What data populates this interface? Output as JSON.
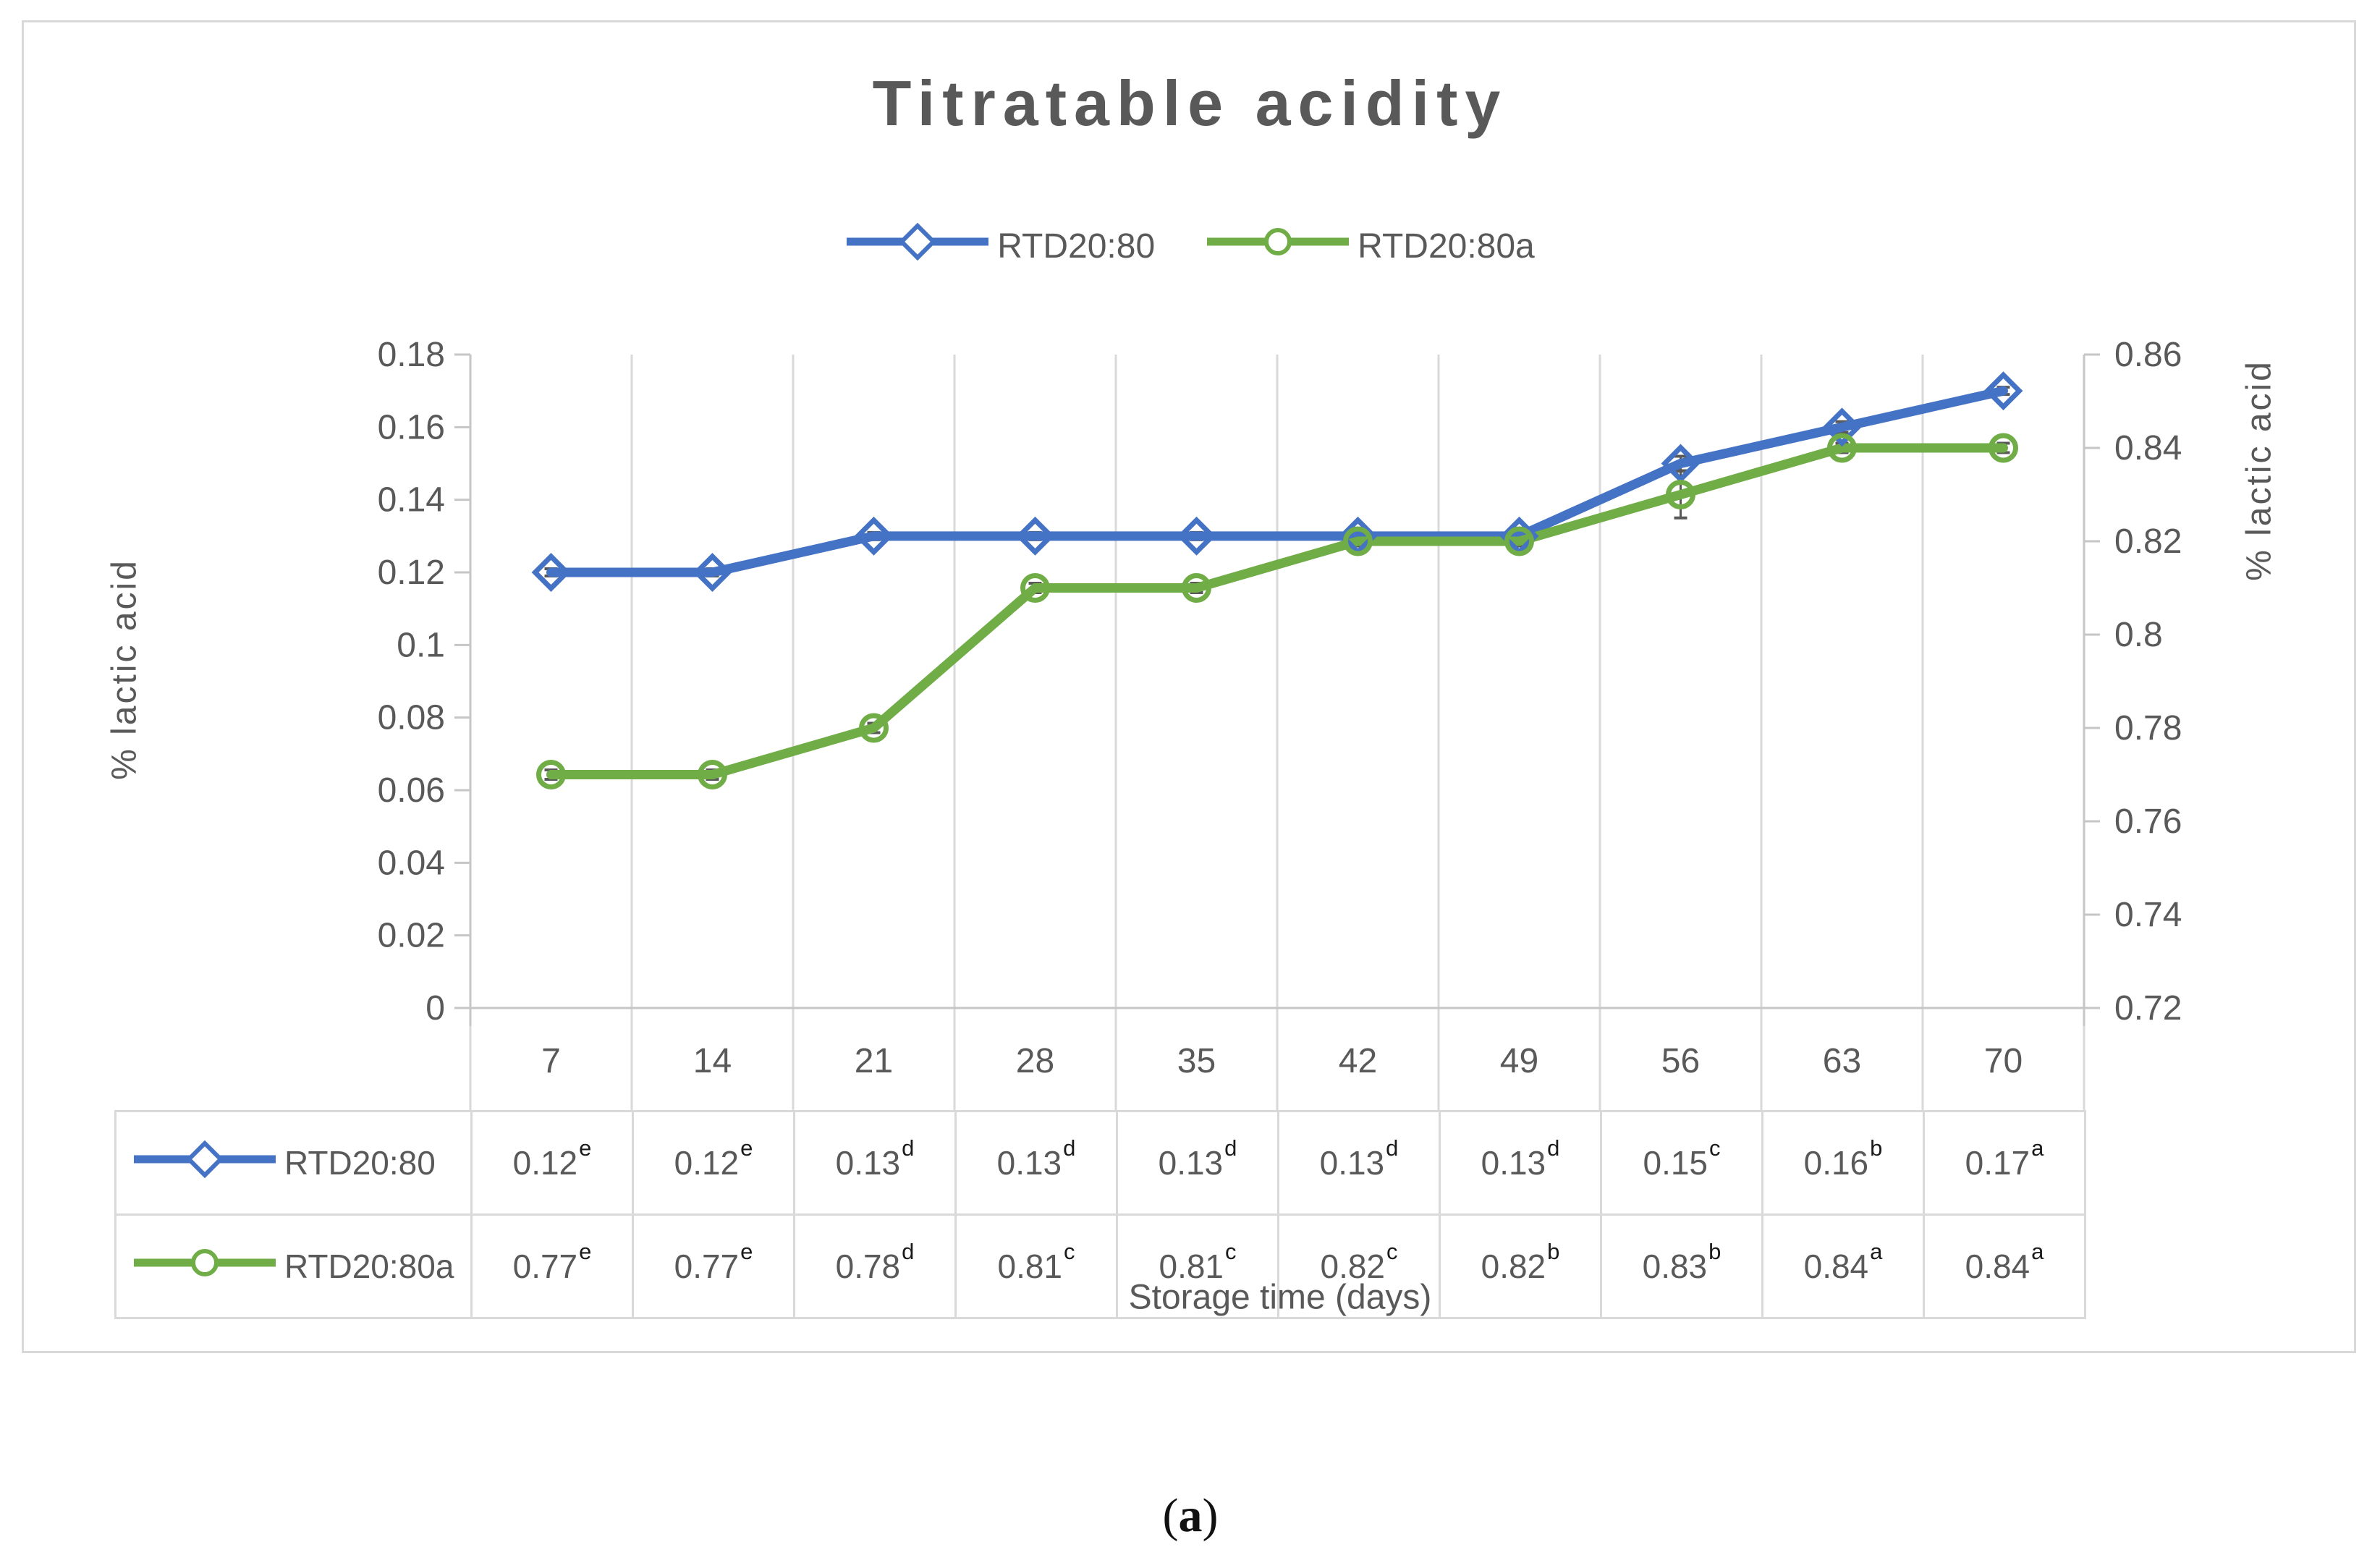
{
  "chart_data": {
    "type": "line",
    "title": "Titratable acidity",
    "xlabel": "Storage time (days)",
    "ylabel_left": "% lactic acid",
    "ylabel_right": "% lactic acid",
    "categories": [
      "7",
      "14",
      "21",
      "28",
      "35",
      "42",
      "49",
      "56",
      "63",
      "70"
    ],
    "left_axis": {
      "min": 0,
      "max": 0.18,
      "tick_labels": [
        "0",
        "0.02",
        "0.04",
        "0.06",
        "0.08",
        "0.1",
        "0.12",
        "0.14",
        "0.16",
        "0.18"
      ]
    },
    "right_axis": {
      "min": 0.72,
      "max": 0.86,
      "tick_labels": [
        "0.72",
        "0.74",
        "0.76",
        "0.78",
        "0.8",
        "0.82",
        "0.84",
        "0.86"
      ]
    },
    "grid": "vertical-only",
    "legend_position": "top-center",
    "series": [
      {
        "name": "RTD20:80",
        "marker": "diamond",
        "color": "#4472C4",
        "axis": "left",
        "values": [
          0.12,
          0.12,
          0.13,
          0.13,
          0.13,
          0.13,
          0.13,
          0.15,
          0.16,
          0.17
        ],
        "superscripts": [
          "e",
          "e",
          "d",
          "d",
          "d",
          "d",
          "d",
          "c",
          "b",
          "a"
        ],
        "error_bars": [
          0.001,
          0.001,
          0.001,
          0.001,
          0.001,
          0.001,
          0.001,
          0.002,
          0.0015,
          0.001
        ]
      },
      {
        "name": "RTD20:80a",
        "marker": "circle",
        "color": "#70AD47",
        "axis": "right",
        "values": [
          0.77,
          0.77,
          0.78,
          0.81,
          0.81,
          0.82,
          0.82,
          0.83,
          0.84,
          0.84
        ],
        "superscripts": [
          "e",
          "e",
          "d",
          "c",
          "c",
          "c",
          "b",
          "b",
          "a",
          "a"
        ],
        "error_bars": [
          0.001,
          0.001,
          0.001,
          0.001,
          0.001,
          0.001,
          0.001,
          0.005,
          0.001,
          0.001
        ]
      }
    ]
  },
  "caption": {
    "open": "(",
    "letter": "a",
    "close": ")"
  },
  "colors": {
    "series1_blue": "#4472C4",
    "series2_green": "#70AD47",
    "text_gray": "#595959",
    "superscript_black": "#1a1a1a",
    "gridline_gray": "#D9D9D9",
    "axis_gray": "#C6C6C6",
    "error_bar_gray": "#595959",
    "border_gray": "#D9D9D9"
  }
}
